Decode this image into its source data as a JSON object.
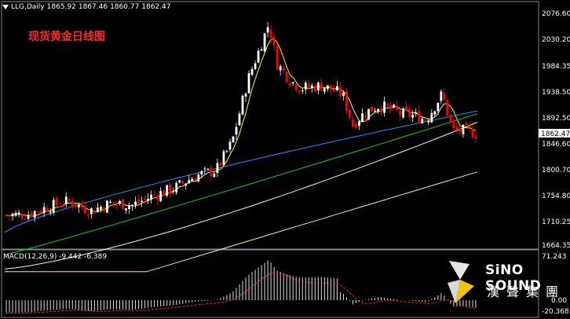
{
  "header": {
    "symbol": "LLG,Daily",
    "open": "1865.92",
    "high": "1867.46",
    "low": "1860.77",
    "close": "1862.47"
  },
  "overlay_title": "现货黄金日线图",
  "price_axis": [
    "2076.60",
    "2030.20",
    "1984.35",
    "1938.50",
    "1892.50",
    "1846.60",
    "1800.70",
    "1754.80",
    "1710.25",
    "1664.35"
  ],
  "current_price": "1862.47",
  "macd": {
    "label": "MACD(12,26,9) -9.442 -6.389",
    "axis_top": "71.243",
    "axis_zero": "0.00",
    "axis_bottom": "-20.368"
  },
  "logo": {
    "en": "SiNO SOUND",
    "cn": "漢聲集團"
  },
  "colors": {
    "background": "#000000",
    "bull": "#ffffff",
    "bear": "#ff0000",
    "ma_fast": "#ffff00",
    "ma_mid": "#1e90ff",
    "ma_slow": "#00cc33",
    "ma_long": "#f5f5dc",
    "ma_vlong": "#ffe89a",
    "signal": "#ff2222"
  }
}
